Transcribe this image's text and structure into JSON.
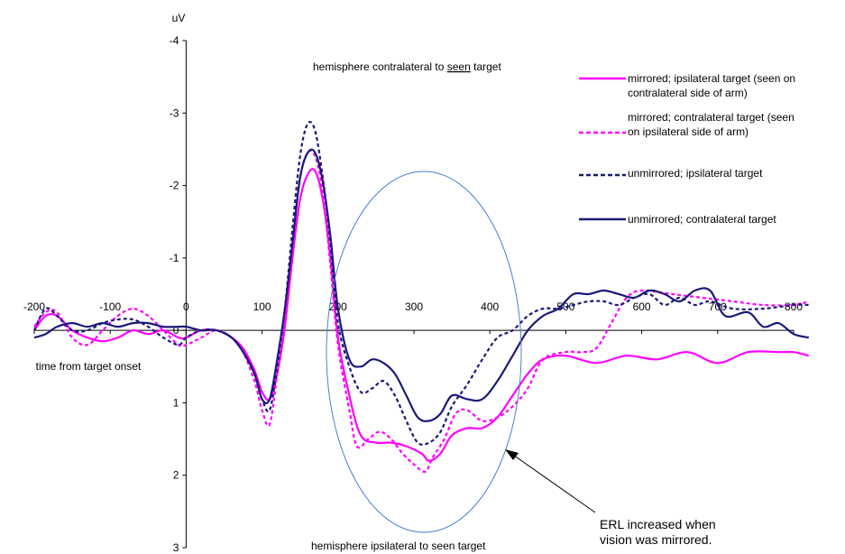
{
  "chart_data": {
    "type": "line",
    "ylabel": "uV",
    "xlabel": "time from target onset",
    "ylim": [
      3,
      -4
    ],
    "xlim": [
      -200,
      800
    ],
    "x_ticks": [
      "-200",
      "-100",
      "0",
      "100",
      "200",
      "300",
      "400",
      "500",
      "600",
      "700",
      "800"
    ],
    "y_ticks": [
      "-4",
      "-3",
      "-2",
      "-1",
      "0",
      "1",
      "2",
      "3"
    ],
    "y_inverted": true,
    "grid": false,
    "legend_position": "top-right",
    "top_label": "hemisphere contralateral to ",
    "top_label_underlined": "seen",
    "top_label_end": " target",
    "bottom_label": "hemisphere ipsilateral to seen target",
    "annotation": {
      "line1": "ERL increased when",
      "line2": "vision was mirrored."
    },
    "circle_color": "#4a7fd4",
    "series": [
      {
        "name_line1": "mirrored; ipsilateral target (seen on",
        "name_line2": "contralateral side of arm)",
        "color": "#ff00ff",
        "dash": "solid",
        "x": [
          -200,
          -185,
          -170,
          -150,
          -130,
          -110,
          -90,
          -70,
          -50,
          -30,
          -10,
          0,
          20,
          40,
          60,
          75,
          90,
          100,
          110,
          120,
          130,
          140,
          150,
          160,
          170,
          180,
          190,
          200,
          215,
          230,
          250,
          270,
          290,
          310,
          320,
          335,
          350,
          370,
          390,
          410,
          430,
          450,
          470,
          500,
          540,
          580,
          620,
          660,
          700,
          740,
          780,
          800,
          820
        ],
        "y": [
          0,
          -0.2,
          -0.2,
          0,
          0.1,
          0.15,
          0.1,
          0,
          0.05,
          0,
          0.1,
          0.1,
          0,
          0,
          0.1,
          0.25,
          0.55,
          0.85,
          0.95,
          0.6,
          -0.05,
          -1,
          -1.8,
          -2.15,
          -2.2,
          -1.8,
          -1,
          0.1,
          0.9,
          1.45,
          1.55,
          1.55,
          1.6,
          1.7,
          1.8,
          1.7,
          1.45,
          1.35,
          1.35,
          1.2,
          0.9,
          0.6,
          0.4,
          0.35,
          0.45,
          0.35,
          0.4,
          0.3,
          0.45,
          0.3,
          0.3,
          0.3,
          0.35
        ]
      },
      {
        "name_line1": "mirrored; contralateral target (seen",
        "name_line2": "on ipsilateral side of arm)",
        "color": "#ff00ff",
        "dash": "dotted",
        "x": [
          -200,
          -185,
          -170,
          -150,
          -130,
          -110,
          -90,
          -70,
          -50,
          -30,
          -10,
          0,
          20,
          40,
          60,
          75,
          90,
          100,
          110,
          120,
          130,
          140,
          150,
          160,
          170,
          180,
          190,
          200,
          215,
          225,
          240,
          255,
          270,
          285,
          300,
          315,
          325,
          340,
          355,
          370,
          390,
          410,
          430,
          450,
          470,
          500,
          520,
          540,
          560,
          580,
          600,
          640,
          680,
          720,
          760,
          800,
          820
        ],
        "y": [
          -0.05,
          -0.25,
          -0.25,
          0.1,
          0.2,
          0,
          -0.2,
          -0.3,
          -0.2,
          0,
          0.2,
          0.2,
          0.1,
          0,
          0.1,
          0.3,
          0.7,
          1.1,
          1.3,
          0.6,
          -0.1,
          -1.2,
          -2.1,
          -2.45,
          -2.4,
          -1.9,
          -0.9,
          0.2,
          1.1,
          1.6,
          1.5,
          1.4,
          1.5,
          1.7,
          1.85,
          1.95,
          1.75,
          1.5,
          1.15,
          1.1,
          1.25,
          1.2,
          1.05,
          0.8,
          0.4,
          0.3,
          0.3,
          0.25,
          -0.1,
          -0.45,
          -0.55,
          -0.5,
          -0.45,
          -0.4,
          -0.35,
          -0.35,
          -0.4
        ]
      },
      {
        "name_line1": "unmirrored; ipsilateral target",
        "name_line2": "",
        "color": "#1a1a78",
        "dash": "dotted",
        "x": [
          -200,
          -185,
          -170,
          -150,
          -130,
          -110,
          -90,
          -70,
          -50,
          -30,
          -10,
          0,
          20,
          40,
          60,
          75,
          90,
          100,
          110,
          120,
          130,
          140,
          150,
          160,
          170,
          180,
          190,
          200,
          215,
          230,
          245,
          260,
          275,
          290,
          305,
          320,
          335,
          350,
          370,
          390,
          410,
          430,
          450,
          470,
          490,
          510,
          530,
          550,
          570,
          590,
          610,
          630,
          650,
          670,
          690,
          720,
          760,
          800,
          820
        ],
        "y": [
          0,
          -0.3,
          -0.2,
          0,
          0,
          -0.1,
          -0.15,
          -0.15,
          -0.05,
          0.1,
          0.2,
          0.1,
          0,
          0,
          0.1,
          0.3,
          0.6,
          0.95,
          1.1,
          0.5,
          -0.3,
          -1.4,
          -2.4,
          -2.85,
          -2.75,
          -2.1,
          -1.2,
          -0.1,
          0.5,
          0.85,
          0.8,
          0.7,
          0.9,
          1.25,
          1.55,
          1.55,
          1.4,
          1.05,
          0.75,
          0.4,
          0.1,
          0,
          -0.2,
          -0.3,
          -0.3,
          -0.35,
          -0.4,
          -0.4,
          -0.35,
          -0.45,
          -0.5,
          -0.35,
          -0.45,
          -0.35,
          -0.4,
          -0.3,
          -0.3,
          -0.35,
          -0.35
        ]
      },
      {
        "name_line1": "unmirrored; contralateral target",
        "name_line2": "",
        "color": "#1a1a78",
        "dash": "solid",
        "x": [
          -200,
          -185,
          -170,
          -150,
          -130,
          -110,
          -90,
          -70,
          -50,
          -30,
          -10,
          0,
          20,
          40,
          60,
          75,
          90,
          100,
          110,
          120,
          130,
          140,
          150,
          160,
          170,
          180,
          190,
          200,
          215,
          230,
          245,
          260,
          275,
          290,
          305,
          320,
          335,
          350,
          370,
          390,
          410,
          430,
          450,
          470,
          490,
          510,
          530,
          550,
          570,
          590,
          610,
          630,
          650,
          670,
          690,
          710,
          740,
          760,
          780,
          800,
          820
        ],
        "y": [
          0.1,
          0.05,
          -0.05,
          -0.1,
          -0.05,
          -0.1,
          -0.05,
          -0.1,
          -0.1,
          -0.05,
          -0.05,
          -0.05,
          0,
          0,
          0.1,
          0.3,
          0.6,
          0.95,
          0.95,
          0.4,
          -0.3,
          -1.2,
          -2.1,
          -2.45,
          -2.45,
          -2.05,
          -1.3,
          -0.3,
          0.4,
          0.5,
          0.4,
          0.45,
          0.6,
          0.9,
          1.2,
          1.25,
          1.15,
          0.9,
          0.95,
          0.95,
          0.7,
          0.35,
          0,
          -0.2,
          -0.3,
          -0.5,
          -0.5,
          -0.55,
          -0.5,
          -0.45,
          -0.55,
          -0.5,
          -0.4,
          -0.55,
          -0.55,
          -0.2,
          -0.25,
          -0.05,
          -0.1,
          0.05,
          0.1
        ]
      }
    ]
  }
}
